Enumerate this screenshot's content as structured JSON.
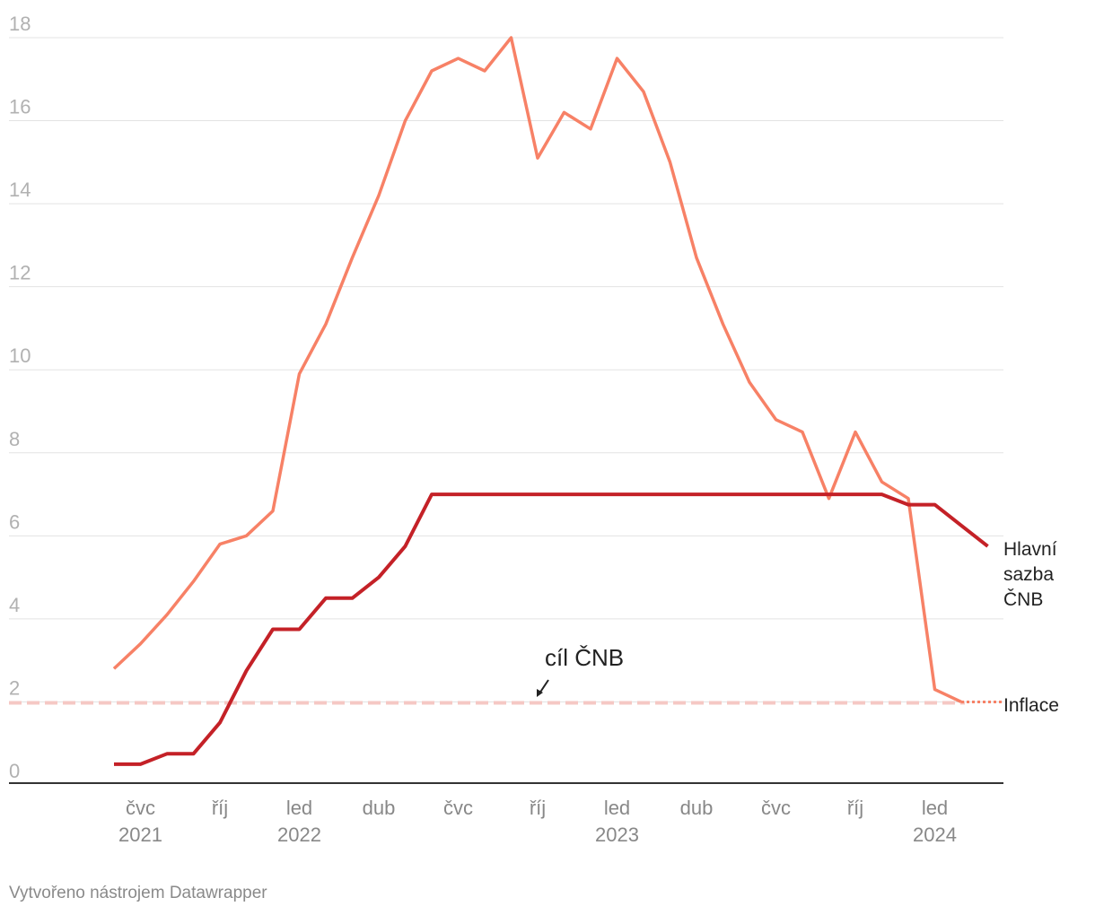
{
  "chart_data": {
    "type": "line",
    "title": "",
    "xlabel": "",
    "ylabel": "",
    "ylim": [
      0,
      18
    ],
    "yticks": [
      0,
      2,
      4,
      6,
      8,
      10,
      12,
      14,
      16,
      18
    ],
    "grid": true,
    "x": [
      "2021-06",
      "2021-07",
      "2021-08",
      "2021-09",
      "2021-10",
      "2021-11",
      "2021-12",
      "2022-01",
      "2022-02",
      "2022-03",
      "2022-04",
      "2022-05",
      "2022-06",
      "2022-07",
      "2022-08",
      "2022-09",
      "2022-10",
      "2022-11",
      "2022-12",
      "2023-01",
      "2023-02",
      "2023-03",
      "2023-04",
      "2023-05",
      "2023-06",
      "2023-07",
      "2023-08",
      "2023-09",
      "2023-10",
      "2023-11",
      "2023-12",
      "2024-01",
      "2024-02",
      "2024-03"
    ],
    "xticks": [
      {
        "x": "2021-07",
        "month": "čvc",
        "year": "2021"
      },
      {
        "x": "2021-10",
        "month": "říj",
        "year": ""
      },
      {
        "x": "2022-01",
        "month": "led",
        "year": "2022"
      },
      {
        "x": "2022-04",
        "month": "dub",
        "year": ""
      },
      {
        "x": "2022-07",
        "month": "čvc",
        "year": ""
      },
      {
        "x": "2022-10",
        "month": "říj",
        "year": ""
      },
      {
        "x": "2023-01",
        "month": "led",
        "year": "2023"
      },
      {
        "x": "2023-04",
        "month": "dub",
        "year": ""
      },
      {
        "x": "2023-07",
        "month": "čvc",
        "year": ""
      },
      {
        "x": "2023-10",
        "month": "říj",
        "year": ""
      },
      {
        "x": "2024-01",
        "month": "led",
        "year": "2024"
      }
    ],
    "series": [
      {
        "name": "Inflace",
        "color": "#f78166",
        "values": [
          2.8,
          3.4,
          4.1,
          4.9,
          5.8,
          6.0,
          6.6,
          9.9,
          11.1,
          12.7,
          14.2,
          16.0,
          17.2,
          17.5,
          17.2,
          18.0,
          15.1,
          16.2,
          15.8,
          17.5,
          16.7,
          15.0,
          12.7,
          11.1,
          9.7,
          8.8,
          8.5,
          6.9,
          8.5,
          7.3,
          6.9,
          2.3,
          2.0,
          null
        ]
      },
      {
        "name": "Hlavní sazba ČNB",
        "color": "#c42127",
        "values": [
          0.5,
          0.5,
          0.75,
          0.75,
          1.5,
          2.75,
          3.75,
          3.75,
          4.5,
          4.5,
          5.0,
          5.75,
          7.0,
          7.0,
          7.0,
          7.0,
          7.0,
          7.0,
          7.0,
          7.0,
          7.0,
          7.0,
          7.0,
          7.0,
          7.0,
          7.0,
          7.0,
          7.0,
          7.0,
          7.0,
          6.75,
          6.75,
          6.25,
          5.75
        ]
      }
    ],
    "target": {
      "value": 2.0,
      "label": "cíl ČNB",
      "color": "#f5c8c4"
    },
    "end_labels": {
      "rate": [
        "Hlavní",
        "sazba",
        "ČNB"
      ],
      "inflation": "Inflace"
    }
  },
  "footer": "Vytvořeno nástrojem Datawrapper"
}
